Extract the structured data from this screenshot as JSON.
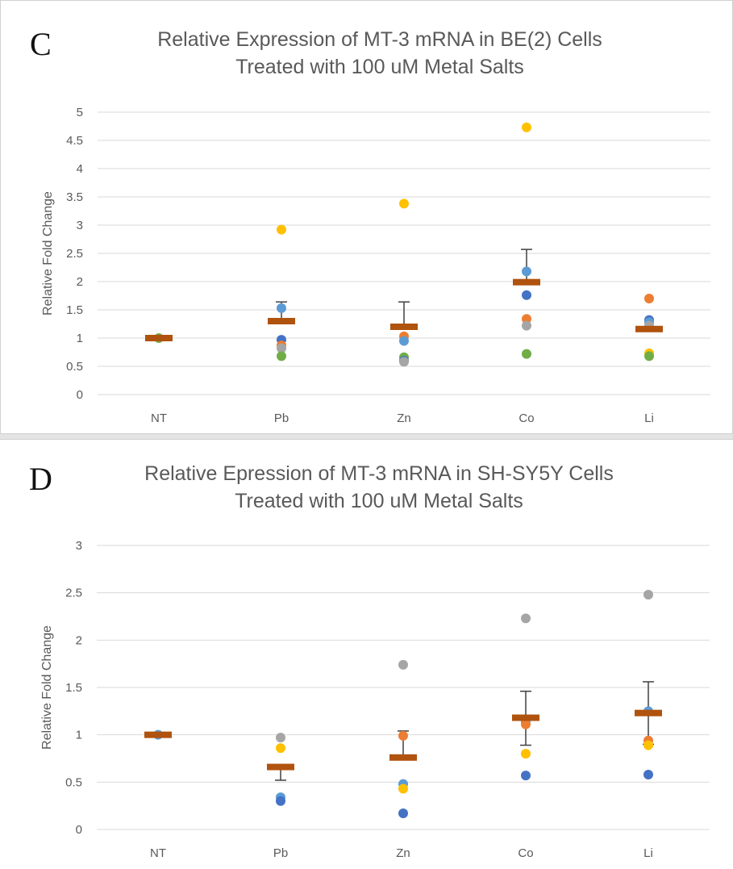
{
  "colors": {
    "mean_bar": "#b0530e",
    "error_bar": "#404040",
    "grid": "#d9d9d9",
    "rep1": "#4472c4",
    "rep2": "#ed7d31",
    "rep3": "#a5a5a5",
    "rep4": "#ffc000",
    "rep5": "#5b9bd5",
    "rep6": "#70ad47"
  },
  "chart_data": [
    {
      "panel_label": "C",
      "type": "scatter",
      "title": "Relative Expression of MT-3 mRNA in BE(2) Cells",
      "subtitle": "Treated with 100 uM Metal Salts",
      "ylabel": "Relative Fold Change",
      "xlabel": "",
      "categories": [
        "NT",
        "Pb",
        "Zn",
        "Co",
        "Li"
      ],
      "ylim": [
        0,
        5
      ],
      "yticks": [
        "0",
        "0.5",
        "1",
        "1.5",
        "2",
        "2.5",
        "3",
        "3.5",
        "4",
        "4.5",
        "5"
      ],
      "ytick_values": [
        0,
        0.5,
        1,
        1.5,
        2,
        2.5,
        3,
        3.5,
        4,
        4.5,
        5
      ],
      "grid": true,
      "mean": [
        1.0,
        1.3,
        1.2,
        1.99,
        1.16
      ],
      "error_upper": [
        1.0,
        1.64,
        1.64,
        2.57,
        1.16
      ],
      "error_lower": [
        1.0,
        1.3,
        1.2,
        1.99,
        1.16
      ],
      "points": [
        {
          "cat": 0,
          "y": 1.0,
          "color": "#70ad47"
        },
        {
          "cat": 1,
          "y": 2.92,
          "color": "#ffc000"
        },
        {
          "cat": 1,
          "y": 1.53,
          "color": "#5b9bd5"
        },
        {
          "cat": 1,
          "y": 0.97,
          "color": "#4472c4"
        },
        {
          "cat": 1,
          "y": 0.87,
          "color": "#ed7d31"
        },
        {
          "cat": 1,
          "y": 0.82,
          "color": "#a5a5a5"
        },
        {
          "cat": 1,
          "y": 0.68,
          "color": "#70ad47"
        },
        {
          "cat": 2,
          "y": 3.38,
          "color": "#ffc000"
        },
        {
          "cat": 2,
          "y": 1.03,
          "color": "#ed7d31"
        },
        {
          "cat": 2,
          "y": 0.95,
          "color": "#5b9bd5"
        },
        {
          "cat": 2,
          "y": 0.66,
          "color": "#70ad47"
        },
        {
          "cat": 2,
          "y": 0.6,
          "color": "#4472c4"
        },
        {
          "cat": 2,
          "y": 0.58,
          "color": "#a5a5a5"
        },
        {
          "cat": 3,
          "y": 4.73,
          "color": "#ffc000"
        },
        {
          "cat": 3,
          "y": 2.18,
          "color": "#5b9bd5"
        },
        {
          "cat": 3,
          "y": 1.76,
          "color": "#4472c4"
        },
        {
          "cat": 3,
          "y": 1.34,
          "color": "#ed7d31"
        },
        {
          "cat": 3,
          "y": 1.22,
          "color": "#a5a5a5"
        },
        {
          "cat": 3,
          "y": 0.72,
          "color": "#70ad47"
        },
        {
          "cat": 4,
          "y": 1.7,
          "color": "#ed7d31"
        },
        {
          "cat": 4,
          "y": 1.32,
          "color": "#4472c4"
        },
        {
          "cat": 4,
          "y": 1.28,
          "color": "#5b9bd5"
        },
        {
          "cat": 4,
          "y": 1.22,
          "color": "#a5a5a5"
        },
        {
          "cat": 4,
          "y": 0.73,
          "color": "#ffc000"
        },
        {
          "cat": 4,
          "y": 0.68,
          "color": "#70ad47"
        }
      ]
    },
    {
      "panel_label": "D",
      "type": "scatter",
      "title": "Relative Epression of MT-3 mRNA in SH-SY5Y Cells",
      "subtitle": "Treated with 100 uM Metal Salts",
      "ylabel": "Relative Fold Change",
      "xlabel": "",
      "categories": [
        "NT",
        "Pb",
        "Zn",
        "Co",
        "Li"
      ],
      "ylim": [
        0,
        3
      ],
      "yticks": [
        "0",
        "0.5",
        "1",
        "1.5",
        "2",
        "2.5",
        "3"
      ],
      "ytick_values": [
        0,
        0.5,
        1,
        1.5,
        2,
        2.5,
        3
      ],
      "grid": true,
      "mean": [
        1.0,
        0.66,
        0.76,
        1.18,
        1.23
      ],
      "error_upper": [
        1.0,
        0.66,
        1.04,
        1.46,
        1.56
      ],
      "error_lower": [
        1.0,
        0.52,
        0.76,
        0.89,
        0.9
      ],
      "points": [
        {
          "cat": 0,
          "y": 1.0,
          "color": "#5b9bd5"
        },
        {
          "cat": 1,
          "y": 0.97,
          "color": "#a5a5a5"
        },
        {
          "cat": 1,
          "y": 0.86,
          "color": "#ffc000"
        },
        {
          "cat": 1,
          "y": 0.34,
          "color": "#5b9bd5"
        },
        {
          "cat": 1,
          "y": 0.3,
          "color": "#4472c4"
        },
        {
          "cat": 2,
          "y": 1.74,
          "color": "#a5a5a5"
        },
        {
          "cat": 2,
          "y": 0.99,
          "color": "#ed7d31"
        },
        {
          "cat": 2,
          "y": 0.48,
          "color": "#5b9bd5"
        },
        {
          "cat": 2,
          "y": 0.43,
          "color": "#ffc000"
        },
        {
          "cat": 2,
          "y": 0.17,
          "color": "#4472c4"
        },
        {
          "cat": 3,
          "y": 2.23,
          "color": "#a5a5a5"
        },
        {
          "cat": 3,
          "y": 1.14,
          "color": "#5b9bd5"
        },
        {
          "cat": 3,
          "y": 1.11,
          "color": "#ed7d31"
        },
        {
          "cat": 3,
          "y": 0.8,
          "color": "#ffc000"
        },
        {
          "cat": 3,
          "y": 0.57,
          "color": "#4472c4"
        },
        {
          "cat": 4,
          "y": 2.48,
          "color": "#a5a5a5"
        },
        {
          "cat": 4,
          "y": 1.25,
          "color": "#5b9bd5"
        },
        {
          "cat": 4,
          "y": 0.94,
          "color": "#ed7d31"
        },
        {
          "cat": 4,
          "y": 0.89,
          "color": "#ffc000"
        },
        {
          "cat": 4,
          "y": 0.58,
          "color": "#4472c4"
        }
      ]
    }
  ]
}
